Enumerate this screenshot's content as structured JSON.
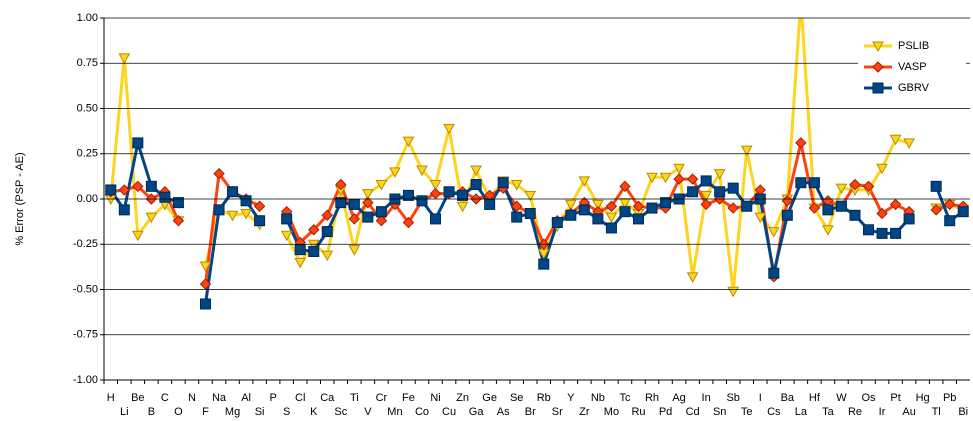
{
  "chart_data": {
    "type": "line",
    "y_label": "% Error (PSP - AE)",
    "categories": [
      "H",
      "Li",
      "Be",
      "B",
      "C",
      "O",
      "N",
      "F",
      "Na",
      "Mg",
      "Al",
      "Si",
      "P",
      "S",
      "Cl",
      "K",
      "Ca",
      "Sc",
      "Ti",
      "V",
      "Cr",
      "Mn",
      "Fe",
      "Co",
      "Ni",
      "Cu",
      "Zn",
      "Ga",
      "Ge",
      "As",
      "Se",
      "Br",
      "Rb",
      "Sr",
      "Y",
      "Zr",
      "Nb",
      "Mo",
      "Tc",
      "Ru",
      "Rh",
      "Pd",
      "Ag",
      "Cd",
      "In",
      "Sn",
      "Sb",
      "Te",
      "I",
      "Cs",
      "Ba",
      "La",
      "Hf",
      "Ta",
      "W",
      "Re",
      "Os",
      "Ir",
      "Pt",
      "Au",
      "Hg",
      "Tl",
      "Pb",
      "Bi"
    ],
    "series": [
      {
        "name": "PSLIB",
        "color": "#ffd320",
        "marker": "triangle-down",
        "values": [
          0.0,
          0.78,
          -0.2,
          -0.1,
          -0.03,
          -0.12,
          null,
          -0.37,
          -0.06,
          -0.09,
          -0.08,
          -0.14,
          null,
          -0.2,
          -0.35,
          -0.25,
          -0.31,
          0.05,
          -0.28,
          0.03,
          0.08,
          0.15,
          0.32,
          0.16,
          0.08,
          0.39,
          -0.04,
          0.16,
          0.0,
          0.1,
          0.08,
          0.02,
          -0.3,
          -0.15,
          -0.03,
          0.1,
          -0.03,
          -0.1,
          -0.02,
          -0.08,
          0.12,
          0.12,
          0.17,
          -0.43,
          0.02,
          0.14,
          -0.51,
          0.27,
          -0.1,
          -0.18,
          0.0,
          1.1,
          -0.05,
          -0.17,
          0.06,
          0.05,
          0.05,
          0.17,
          0.33,
          0.31,
          null,
          -0.05,
          -0.03,
          -0.06
        ]
      },
      {
        "name": "VASP",
        "color": "#ff420e",
        "marker": "diamond",
        "values": [
          0.04,
          0.05,
          0.07,
          0.0,
          0.04,
          -0.12,
          null,
          -0.47,
          0.14,
          0.04,
          0.0,
          -0.04,
          null,
          -0.07,
          -0.24,
          -0.17,
          -0.09,
          0.08,
          -0.11,
          -0.02,
          -0.12,
          -0.03,
          -0.13,
          -0.01,
          0.03,
          0.03,
          0.04,
          0.0,
          0.02,
          0.06,
          -0.04,
          -0.08,
          -0.25,
          -0.12,
          -0.08,
          -0.02,
          -0.07,
          -0.04,
          0.07,
          -0.04,
          -0.05,
          -0.05,
          0.11,
          0.11,
          -0.03,
          0.0,
          -0.05,
          -0.04,
          0.05,
          -0.43,
          -0.01,
          0.31,
          -0.05,
          -0.01,
          -0.04,
          0.08,
          0.07,
          -0.08,
          -0.03,
          -0.07,
          null,
          -0.06,
          -0.03,
          -0.04
        ]
      },
      {
        "name": "GBRV",
        "color": "#004586",
        "marker": "square",
        "values": [
          0.05,
          -0.06,
          0.31,
          0.07,
          0.01,
          -0.02,
          null,
          -0.58,
          -0.06,
          0.04,
          -0.01,
          -0.12,
          null,
          -0.11,
          -0.28,
          -0.29,
          -0.18,
          -0.02,
          -0.03,
          -0.1,
          -0.07,
          0.0,
          0.02,
          -0.01,
          -0.11,
          0.04,
          0.02,
          0.08,
          -0.03,
          0.09,
          -0.1,
          -0.08,
          -0.36,
          -0.13,
          -0.09,
          -0.06,
          -0.11,
          -0.16,
          -0.07,
          -0.11,
          -0.05,
          -0.02,
          0.0,
          0.04,
          0.1,
          0.04,
          0.06,
          -0.04,
          0.0,
          -0.41,
          -0.09,
          0.09,
          0.09,
          -0.06,
          -0.04,
          -0.09,
          -0.17,
          -0.19,
          -0.19,
          -0.11,
          null,
          0.07,
          -0.12,
          -0.07
        ]
      }
    ],
    "ylim": [
      -1,
      1
    ],
    "yticks": [
      {
        "value": -1,
        "label": "-1.00"
      },
      {
        "value": -0.75,
        "label": "-0.75"
      },
      {
        "value": -0.5,
        "label": "-0.50"
      },
      {
        "value": -0.25,
        "label": "-0.25"
      },
      {
        "value": 0,
        "label": "0.00"
      },
      {
        "value": 0.25,
        "label": "0.25"
      },
      {
        "value": 0.5,
        "label": "0.50"
      },
      {
        "value": 0.75,
        "label": "0.75"
      },
      {
        "value": 1,
        "label": "1.00"
      }
    ],
    "grid": true,
    "legend": "top-right"
  }
}
